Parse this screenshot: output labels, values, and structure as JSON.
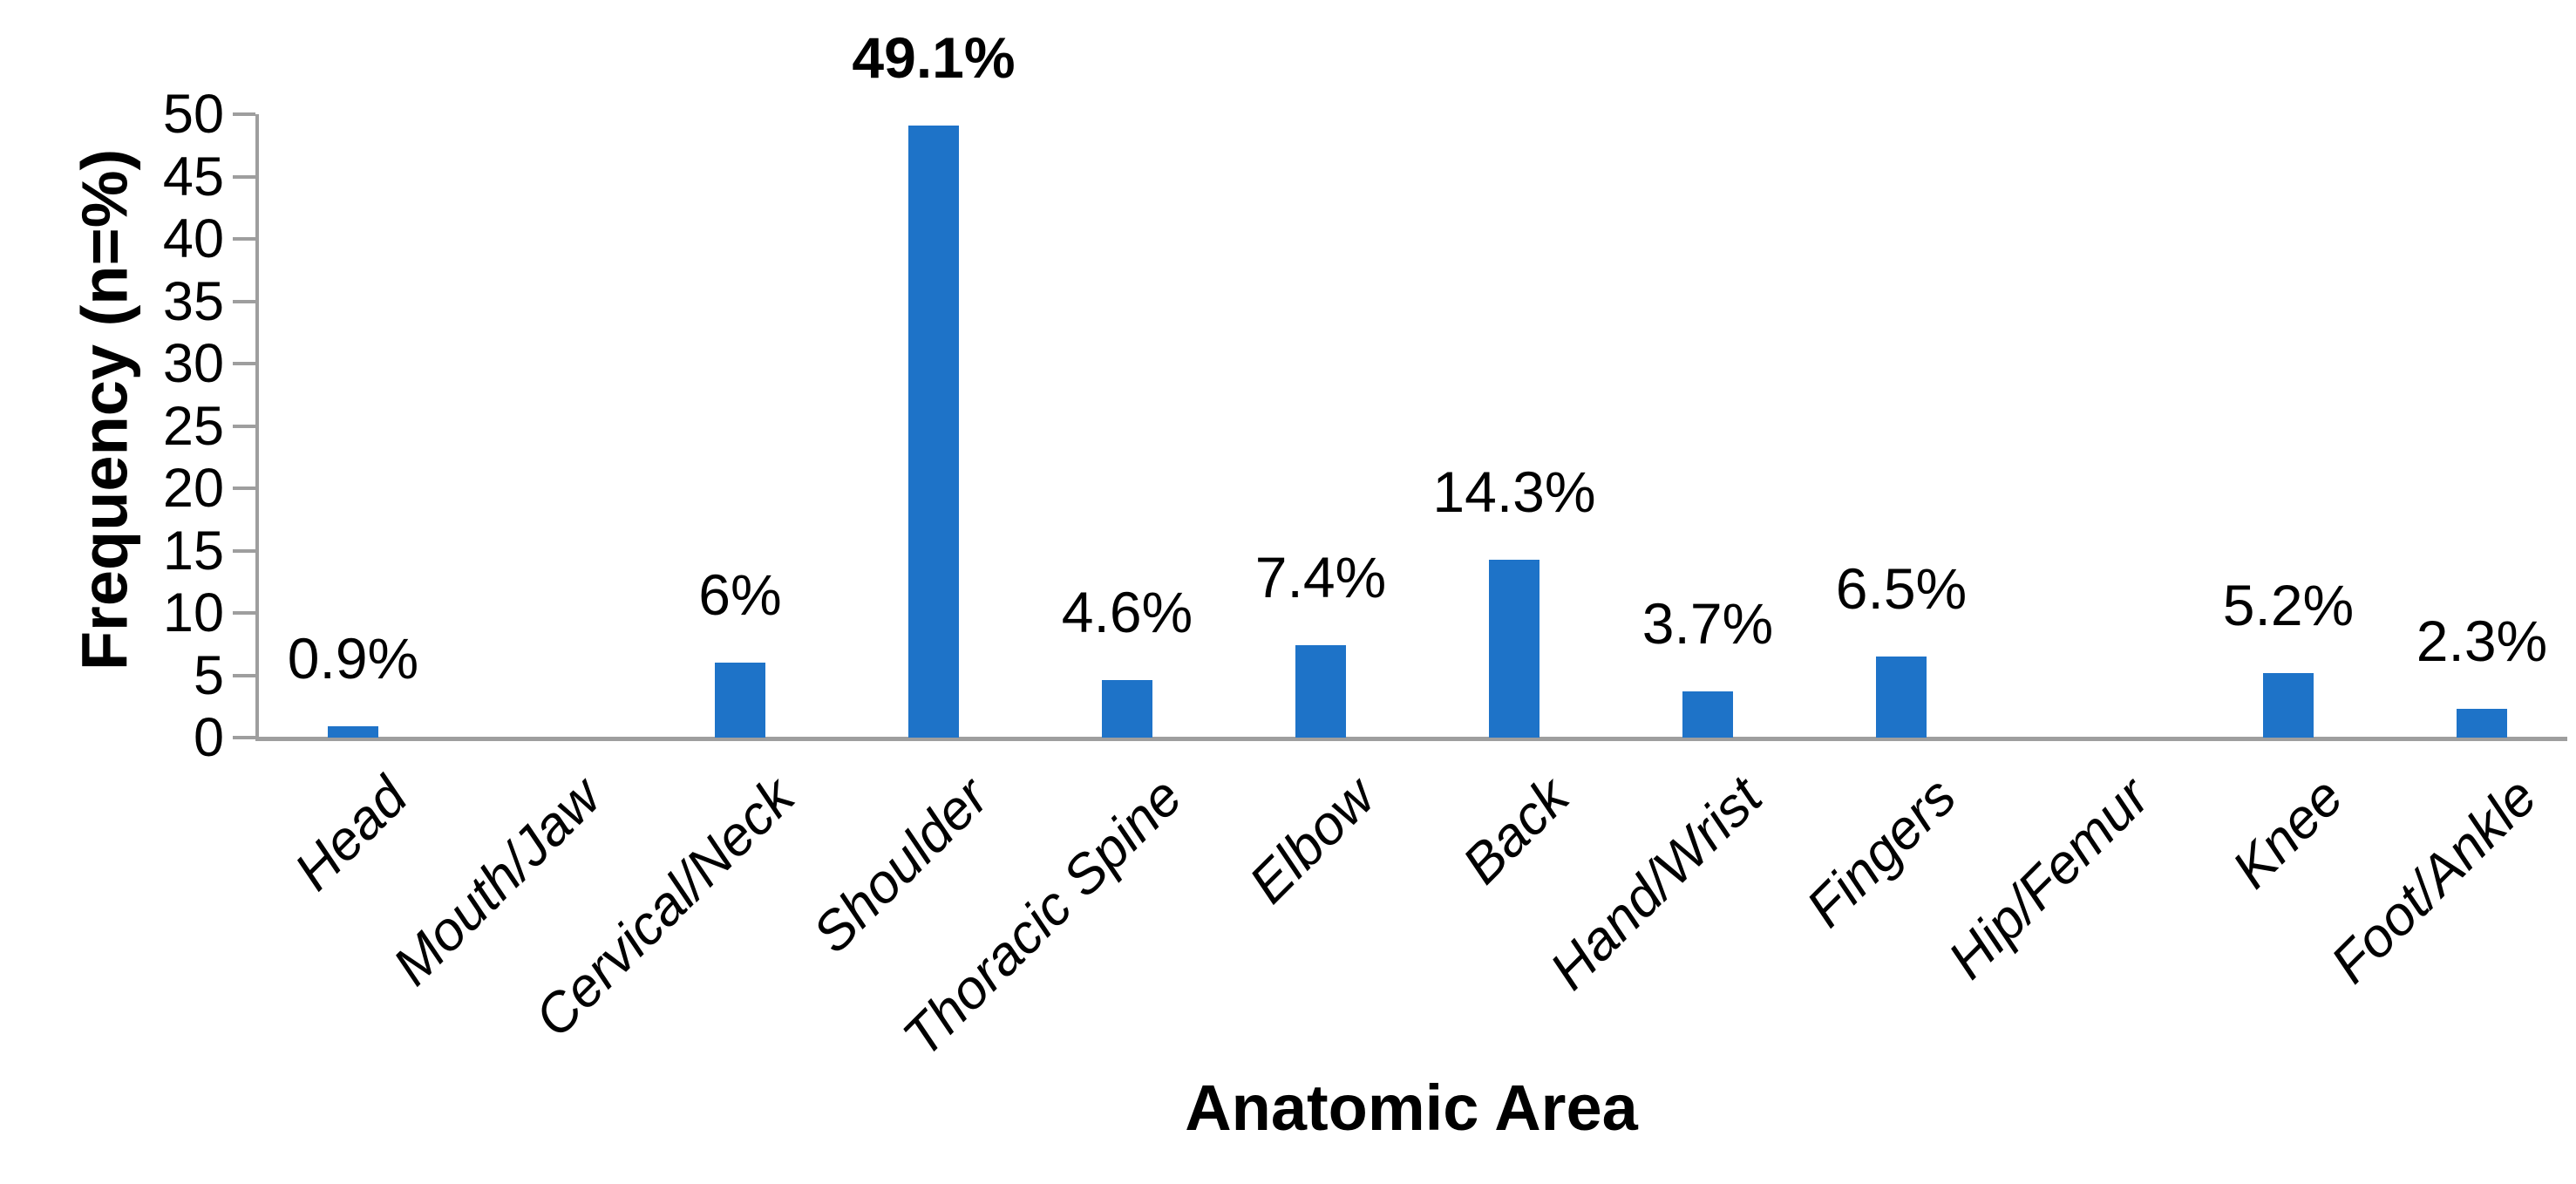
{
  "chart_data": {
    "type": "bar",
    "title": "",
    "xlabel": "Anatomic Area",
    "ylabel": "Frequency (n=%)",
    "ylim": [
      0,
      50
    ],
    "yticks": [
      0,
      5,
      10,
      15,
      20,
      25,
      30,
      35,
      40,
      45,
      50
    ],
    "grid": false,
    "legend": false,
    "categories": [
      "Head",
      "Mouth/Jaw",
      "Cervical/Neck",
      "Shoulder",
      "Thoracic Spine",
      "Elbow",
      "Back",
      "Hand/Wrist",
      "Fingers",
      "Hip/Femur",
      "Knee",
      "Foot/Ankle"
    ],
    "values": [
      0.9,
      0,
      6,
      49.1,
      4.6,
      7.4,
      14.3,
      3.7,
      6.5,
      0,
      5.2,
      2.3
    ],
    "data_labels": [
      "0.9%",
      "",
      "6%",
      "49.1%",
      "4.6%",
      "7.4%",
      "14.3%",
      "3.7%",
      "6.5%",
      "",
      "5.2%",
      "2.3%"
    ],
    "bold_data_label": "49.1%",
    "bar_color": "#1E73C8",
    "axis_color": "#9E9E9E",
    "text_color": "#000000"
  }
}
